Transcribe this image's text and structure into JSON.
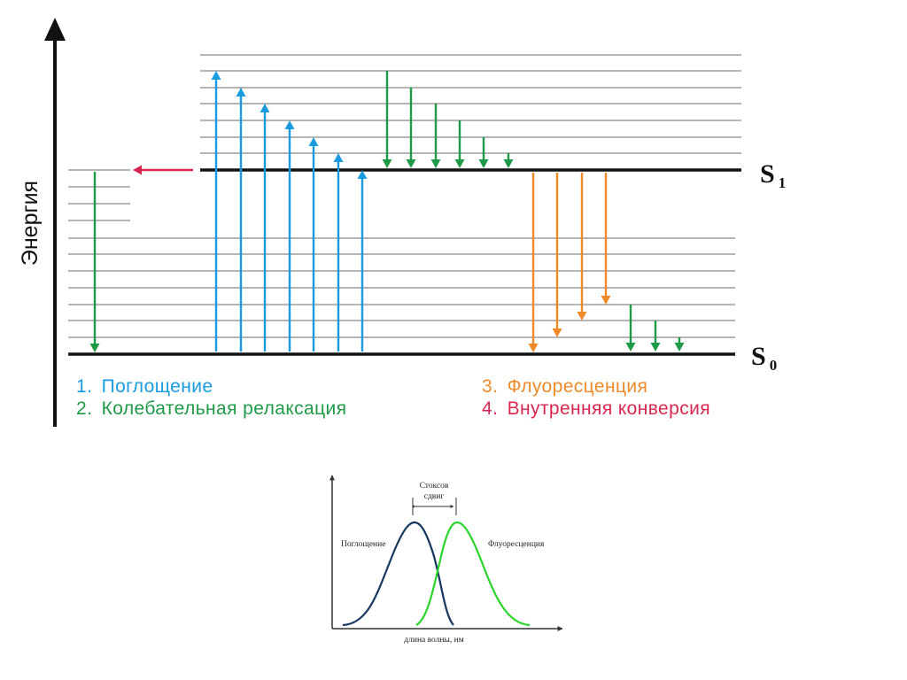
{
  "jablonski": {
    "axis_label": "Энергия",
    "state_upper": {
      "letter": "S",
      "subscript": "1"
    },
    "state_lower": {
      "letter": "S",
      "subscript": "0"
    },
    "legend": [
      {
        "number": "1.",
        "text": "Поглощение",
        "color": "#1a9be0"
      },
      {
        "number": "2.",
        "text": "Колебательная релаксация",
        "color": "#1f9a48"
      },
      {
        "number": "3.",
        "text": "Флуоресценция",
        "color": "#ef8a2b"
      },
      {
        "number": "4.",
        "text": "Внутренняя конверсия",
        "color": "#d8284f"
      }
    ],
    "counts": {
      "absorption_arrows": 7,
      "vibrational_relaxation_arrows_s1": 6,
      "fluorescence_arrows": 4,
      "vibrational_relaxation_arrows_s0": 3,
      "internal_conversion_arrows": 1,
      "s1_vibrational_levels": 7,
      "s0_vibrational_levels": 7
    }
  },
  "spectrum": {
    "stokes_label_line1": "Стоксов",
    "stokes_label_line2": "сдвиг",
    "absorption_label": "Поглощение",
    "fluorescence_label": "Флуоресценция",
    "x_label": "длина волны, нм",
    "absorption_color": "#15375f",
    "fluorescence_color": "#2bd62b"
  }
}
